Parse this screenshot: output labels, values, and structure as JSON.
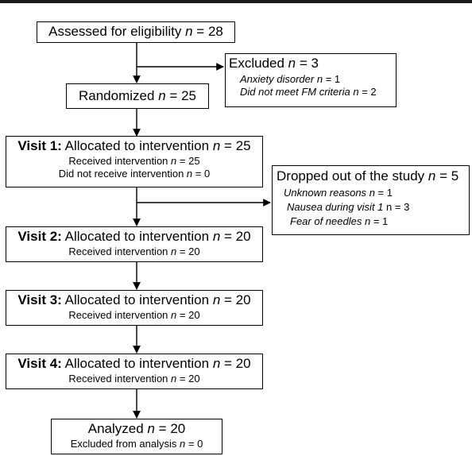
{
  "assessed": {
    "text": "Assessed for eligibility",
    "n": "28"
  },
  "excluded": {
    "title": "Excluded",
    "n": "3",
    "reasons": [
      {
        "label": "Anxiety disorder",
        "n": "1"
      },
      {
        "label": "Did not meet FM criteria",
        "n": "2"
      }
    ]
  },
  "randomized": {
    "text": "Randomized",
    "n": "25"
  },
  "visit1": {
    "label": "Visit 1:",
    "text": "Allocated to intervention",
    "n": "25",
    "received": {
      "text": "Received intervention",
      "n": "25"
    },
    "not_received": {
      "text": "Did not receive intervention",
      "n": "0"
    }
  },
  "dropped": {
    "title": "Dropped out of the study",
    "n": "5",
    "reasons": [
      {
        "label": "Unknown reasons",
        "n": "1"
      },
      {
        "label": "Nausea during visit 1",
        "n": "3"
      },
      {
        "label": "Fear of needles",
        "n": "1"
      }
    ]
  },
  "visit2": {
    "label": "Visit 2:",
    "text": "Allocated to intervention",
    "n": "20",
    "received": {
      "text": "Received intervention",
      "n": "20"
    }
  },
  "visit3": {
    "label": "Visit 3:",
    "text": "Allocated to intervention",
    "n": "20",
    "received": {
      "text": "Received intervention",
      "n": "20"
    }
  },
  "visit4": {
    "label": "Visit 4:",
    "text": "Allocated to intervention",
    "n": "20",
    "received": {
      "text": "Received intervention",
      "n": "20"
    }
  },
  "analyzed": {
    "text": "Analyzed",
    "n": "20",
    "excluded": {
      "text": "Excluded from analysis",
      "n": "0"
    }
  },
  "symbols": {
    "n": "n",
    "eq": "="
  }
}
